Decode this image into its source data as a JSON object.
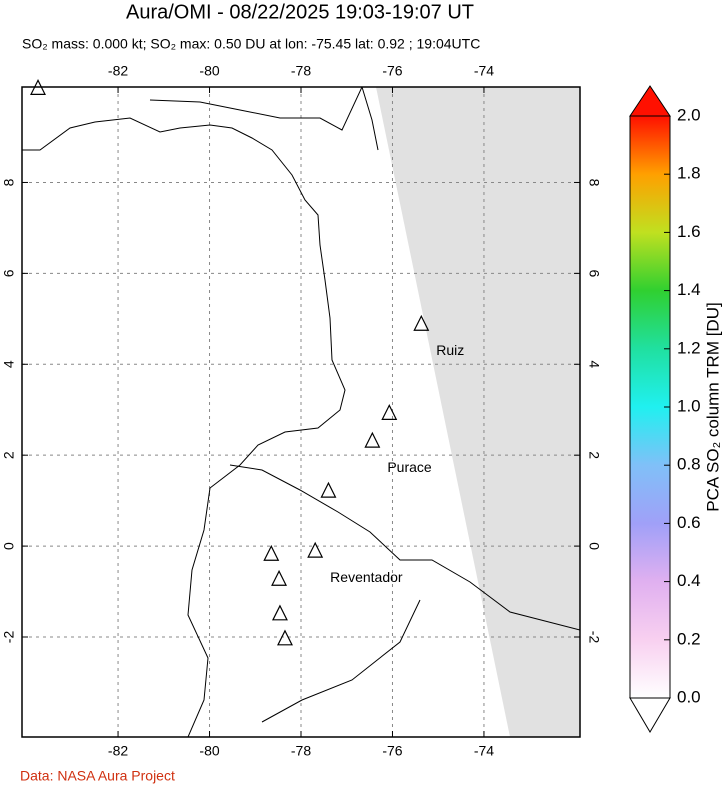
{
  "title": "Aura/OMI - 08/22/2025 19:03-19:07 UT",
  "subtitle": "SO₂ mass: 0.000 kt; SO₂ max: 0.50 DU at lon: -75.45 lat: 0.92 ; 19:04UTC",
  "map": {
    "lonlim": [
      -84.1,
      -71.9
    ],
    "latlim": [
      -4.2,
      10.1
    ],
    "lonticks": [
      -82,
      -80,
      -78,
      -76,
      -74
    ],
    "latticks": [
      -2,
      0,
      2,
      4,
      6,
      8
    ],
    "volcanoes": [
      {
        "lon": -83.75,
        "lat": 10.07
      },
      {
        "name": "Ruiz",
        "lon": -75.37,
        "lat": 4.88
      },
      {
        "lon": -76.07,
        "lat": 2.92
      },
      {
        "name": "Purace",
        "lon": -76.44,
        "lat": 2.31
      },
      {
        "lon": -77.4,
        "lat": 1.21
      },
      {
        "lon": -78.65,
        "lat": -0.18
      },
      {
        "name": "Reventador",
        "lon": -77.69,
        "lat": -0.11
      },
      {
        "lon": -78.48,
        "lat": -0.73
      },
      {
        "lon": -78.46,
        "lat": -1.49
      },
      {
        "lon": -78.35,
        "lat": -2.04
      }
    ]
  },
  "colorbar": {
    "label": "PCA SO₂ column TRM [DU]",
    "lim": [
      0,
      2
    ],
    "ticks": [
      {
        "value": 0,
        "label": "0.0"
      },
      0.2,
      0.4,
      0.6,
      0.8,
      {
        "value": 1,
        "label": "1.0"
      },
      1.2,
      1.4,
      1.6,
      1.8,
      {
        "value": 2,
        "label": "2.0"
      }
    ]
  },
  "credit": "Data: NASA Aura Project"
}
